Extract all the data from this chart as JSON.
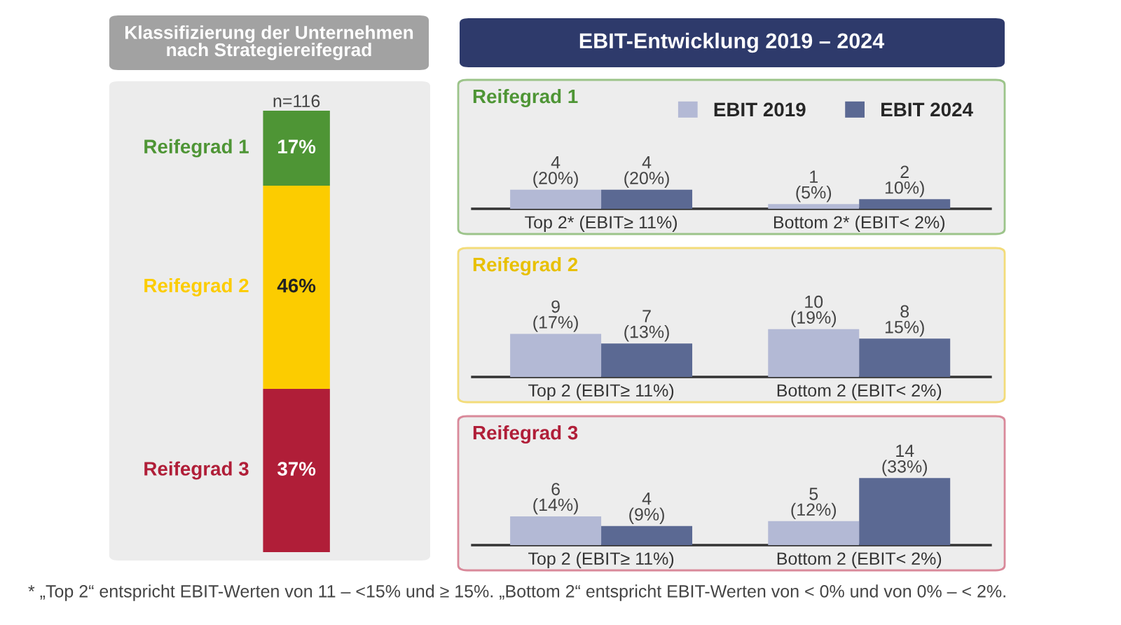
{
  "chart_data": [
    {
      "type": "bar",
      "stacked": true,
      "title": "Klassifizierung der Unternehmen\nnach Strategiereifegrad",
      "categories": [
        null
      ],
      "ylim": [
        0,
        100
      ],
      "tick_labels": false,
      "series": [
        {
          "name": "Reifegrad 3",
          "color": "#b01e38",
          "values": [
            37
          ],
          "value_labels": [
            "37%"
          ]
        },
        {
          "name": "Reifegrad 2",
          "color": "#fccc00",
          "values": [
            46
          ],
          "value_labels": [
            "46%"
          ]
        },
        {
          "name": "Reifegrad 1",
          "color": "#4e9535",
          "values": [
            17
          ],
          "value_labels": [
            "17%"
          ]
        }
      ],
      "annotations": [
        "n=116",
        "* „Top 2“ entspricht EBIT-Werten von 11 – <15% und ≥ 15%. „Bottom 2“ entspricht EBIT-Werten von < 0% und von 0% – < 2%."
      ]
    },
    {
      "type": "bar",
      "title": "Reifegrad 1",
      "categories": [
        "Top 2* (EBIT≥ 11%)",
        "Bottom 2* (EBIT< 2%)"
      ],
      "tick_labels": "x",
      "legend": "top right",
      "series": [
        {
          "name": "EBIT 2019",
          "color": "#b3b9d5",
          "values": [
            4,
            1
          ],
          "value_labels": [
            "4\n(20%)",
            "1\n(5%)"
          ]
        },
        {
          "name": "EBIT 2024",
          "color": "#5b6993",
          "values": [
            4,
            2
          ],
          "value_labels": [
            "4\n(20%)",
            "2\n10%)"
          ]
        }
      ],
      "annotations": [
        "EBIT-Entwicklung 2019 – 2024"
      ]
    },
    {
      "type": "bar",
      "title": "Reifegrad 2",
      "categories": [
        "Top 2 (EBIT≥ 11%)",
        "Bottom 2 (EBIT< 2%)"
      ],
      "tick_labels": "x",
      "series": [
        {
          "color": "#b3b9d5",
          "values": [
            9,
            10
          ],
          "value_labels": [
            "9\n(17%)",
            "10\n(19%)"
          ]
        },
        {
          "color": "#5b6993",
          "values": [
            7,
            8
          ],
          "value_labels": [
            "7\n(13%)",
            "8\n15%)"
          ]
        }
      ]
    },
    {
      "type": "bar",
      "title": "Reifegrad 3",
      "categories": [
        "Top 2 (EBIT≥ 11%)",
        "Bottom 2 (EBIT< 2%)"
      ],
      "tick_labels": "x",
      "series": [
        {
          "color": "#b3b9d5",
          "values": [
            6,
            5
          ],
          "value_labels": [
            "6\n(14%)",
            "5\n(12%)"
          ]
        },
        {
          "color": "#5b6993",
          "values": [
            4,
            14
          ],
          "value_labels": [
            "4\n(9%)",
            "14\n(33%)"
          ]
        }
      ]
    }
  ]
}
